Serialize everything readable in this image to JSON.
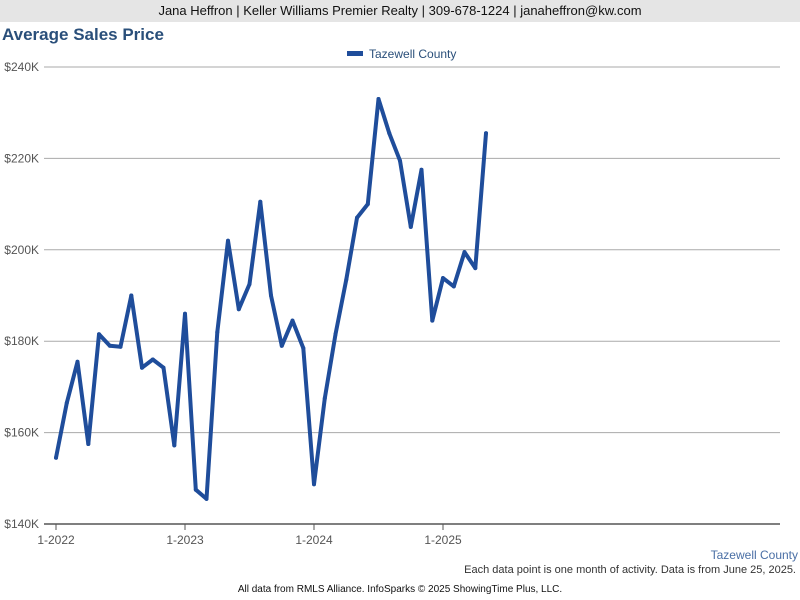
{
  "header": {
    "text": "Jana Heffron | Keller Williams Premier Realty | 309-678-1224 | janaheffron@kw.com"
  },
  "chart_data": {
    "type": "line",
    "title": "Average Sales Price",
    "series": [
      {
        "name": "Tazewell County",
        "color": "#1f4d9b",
        "values": [
          154500,
          166500,
          175500,
          157500,
          181500,
          179000,
          178800,
          190000,
          174200,
          176000,
          174200,
          157200,
          186000,
          147500,
          145500,
          182000,
          202000,
          187000,
          192500,
          210500,
          190000,
          179000,
          184500,
          178500,
          148700,
          167500,
          181500,
          193500,
          207000,
          210000,
          233000,
          225500,
          219500,
          205000,
          217500,
          184500,
          193800,
          192000,
          199500,
          196000,
          225500
        ]
      }
    ],
    "x_start": "2022-01",
    "x_ticks": [
      "1-2022",
      "1-2023",
      "1-2024",
      "1-2025"
    ],
    "y_ticks": [
      "$140K",
      "$160K",
      "$180K",
      "$200K",
      "$220K",
      "$240K"
    ],
    "ylim": [
      140000,
      240000
    ],
    "grid": true,
    "legend_position": "top-center",
    "axis_series_label": "Tazewell County"
  },
  "footnote": "Each data point is one month of activity. Data is from June 25, 2025.",
  "source": "All data from RMLS Alliance. InfoSparks © 2025 ShowingTime Plus, LLC."
}
